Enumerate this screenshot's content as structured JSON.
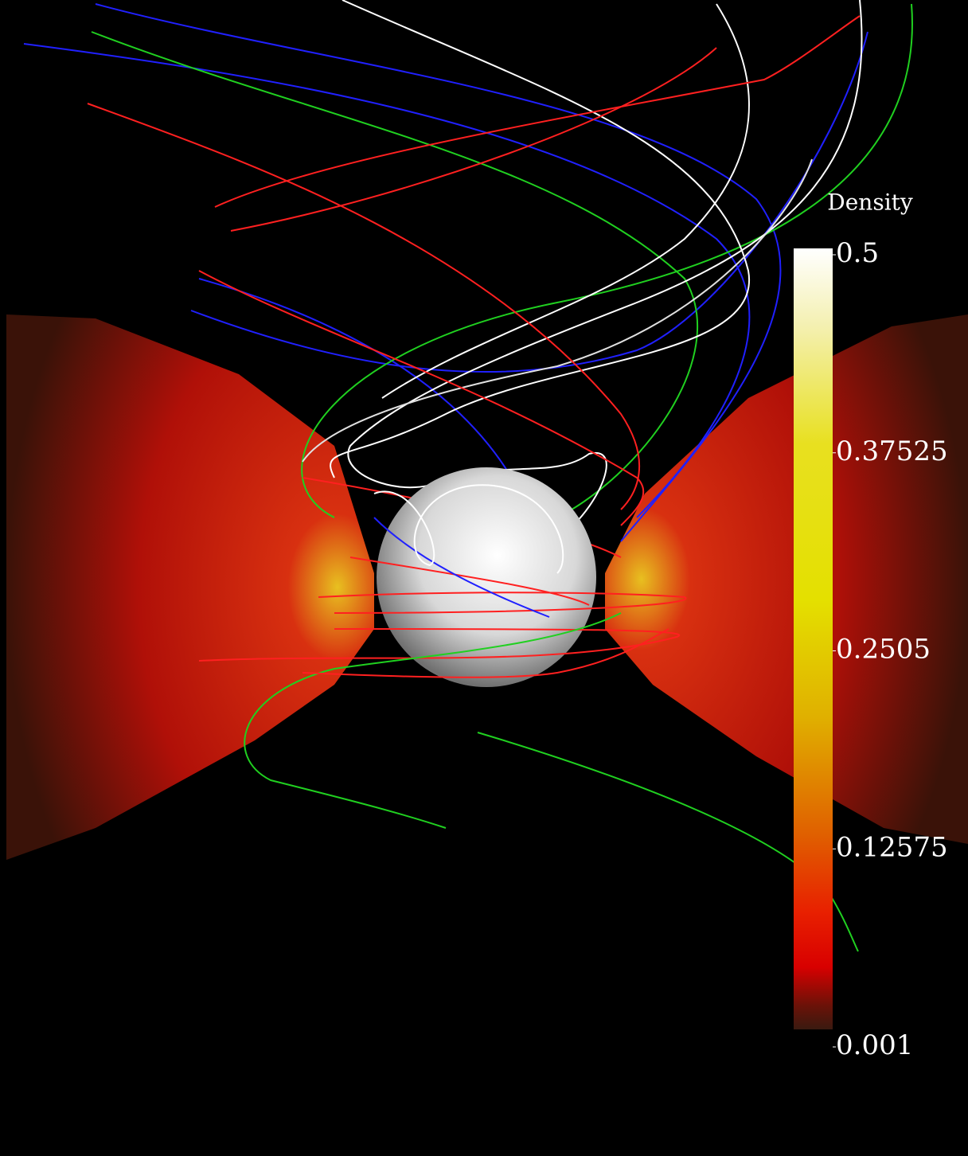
{
  "colorbar": {
    "title": "Density",
    "lim": [
      0.001,
      0.5
    ],
    "ticks": [
      0.5,
      0.37525,
      0.2505,
      0.12575,
      0.001
    ]
  }
}
